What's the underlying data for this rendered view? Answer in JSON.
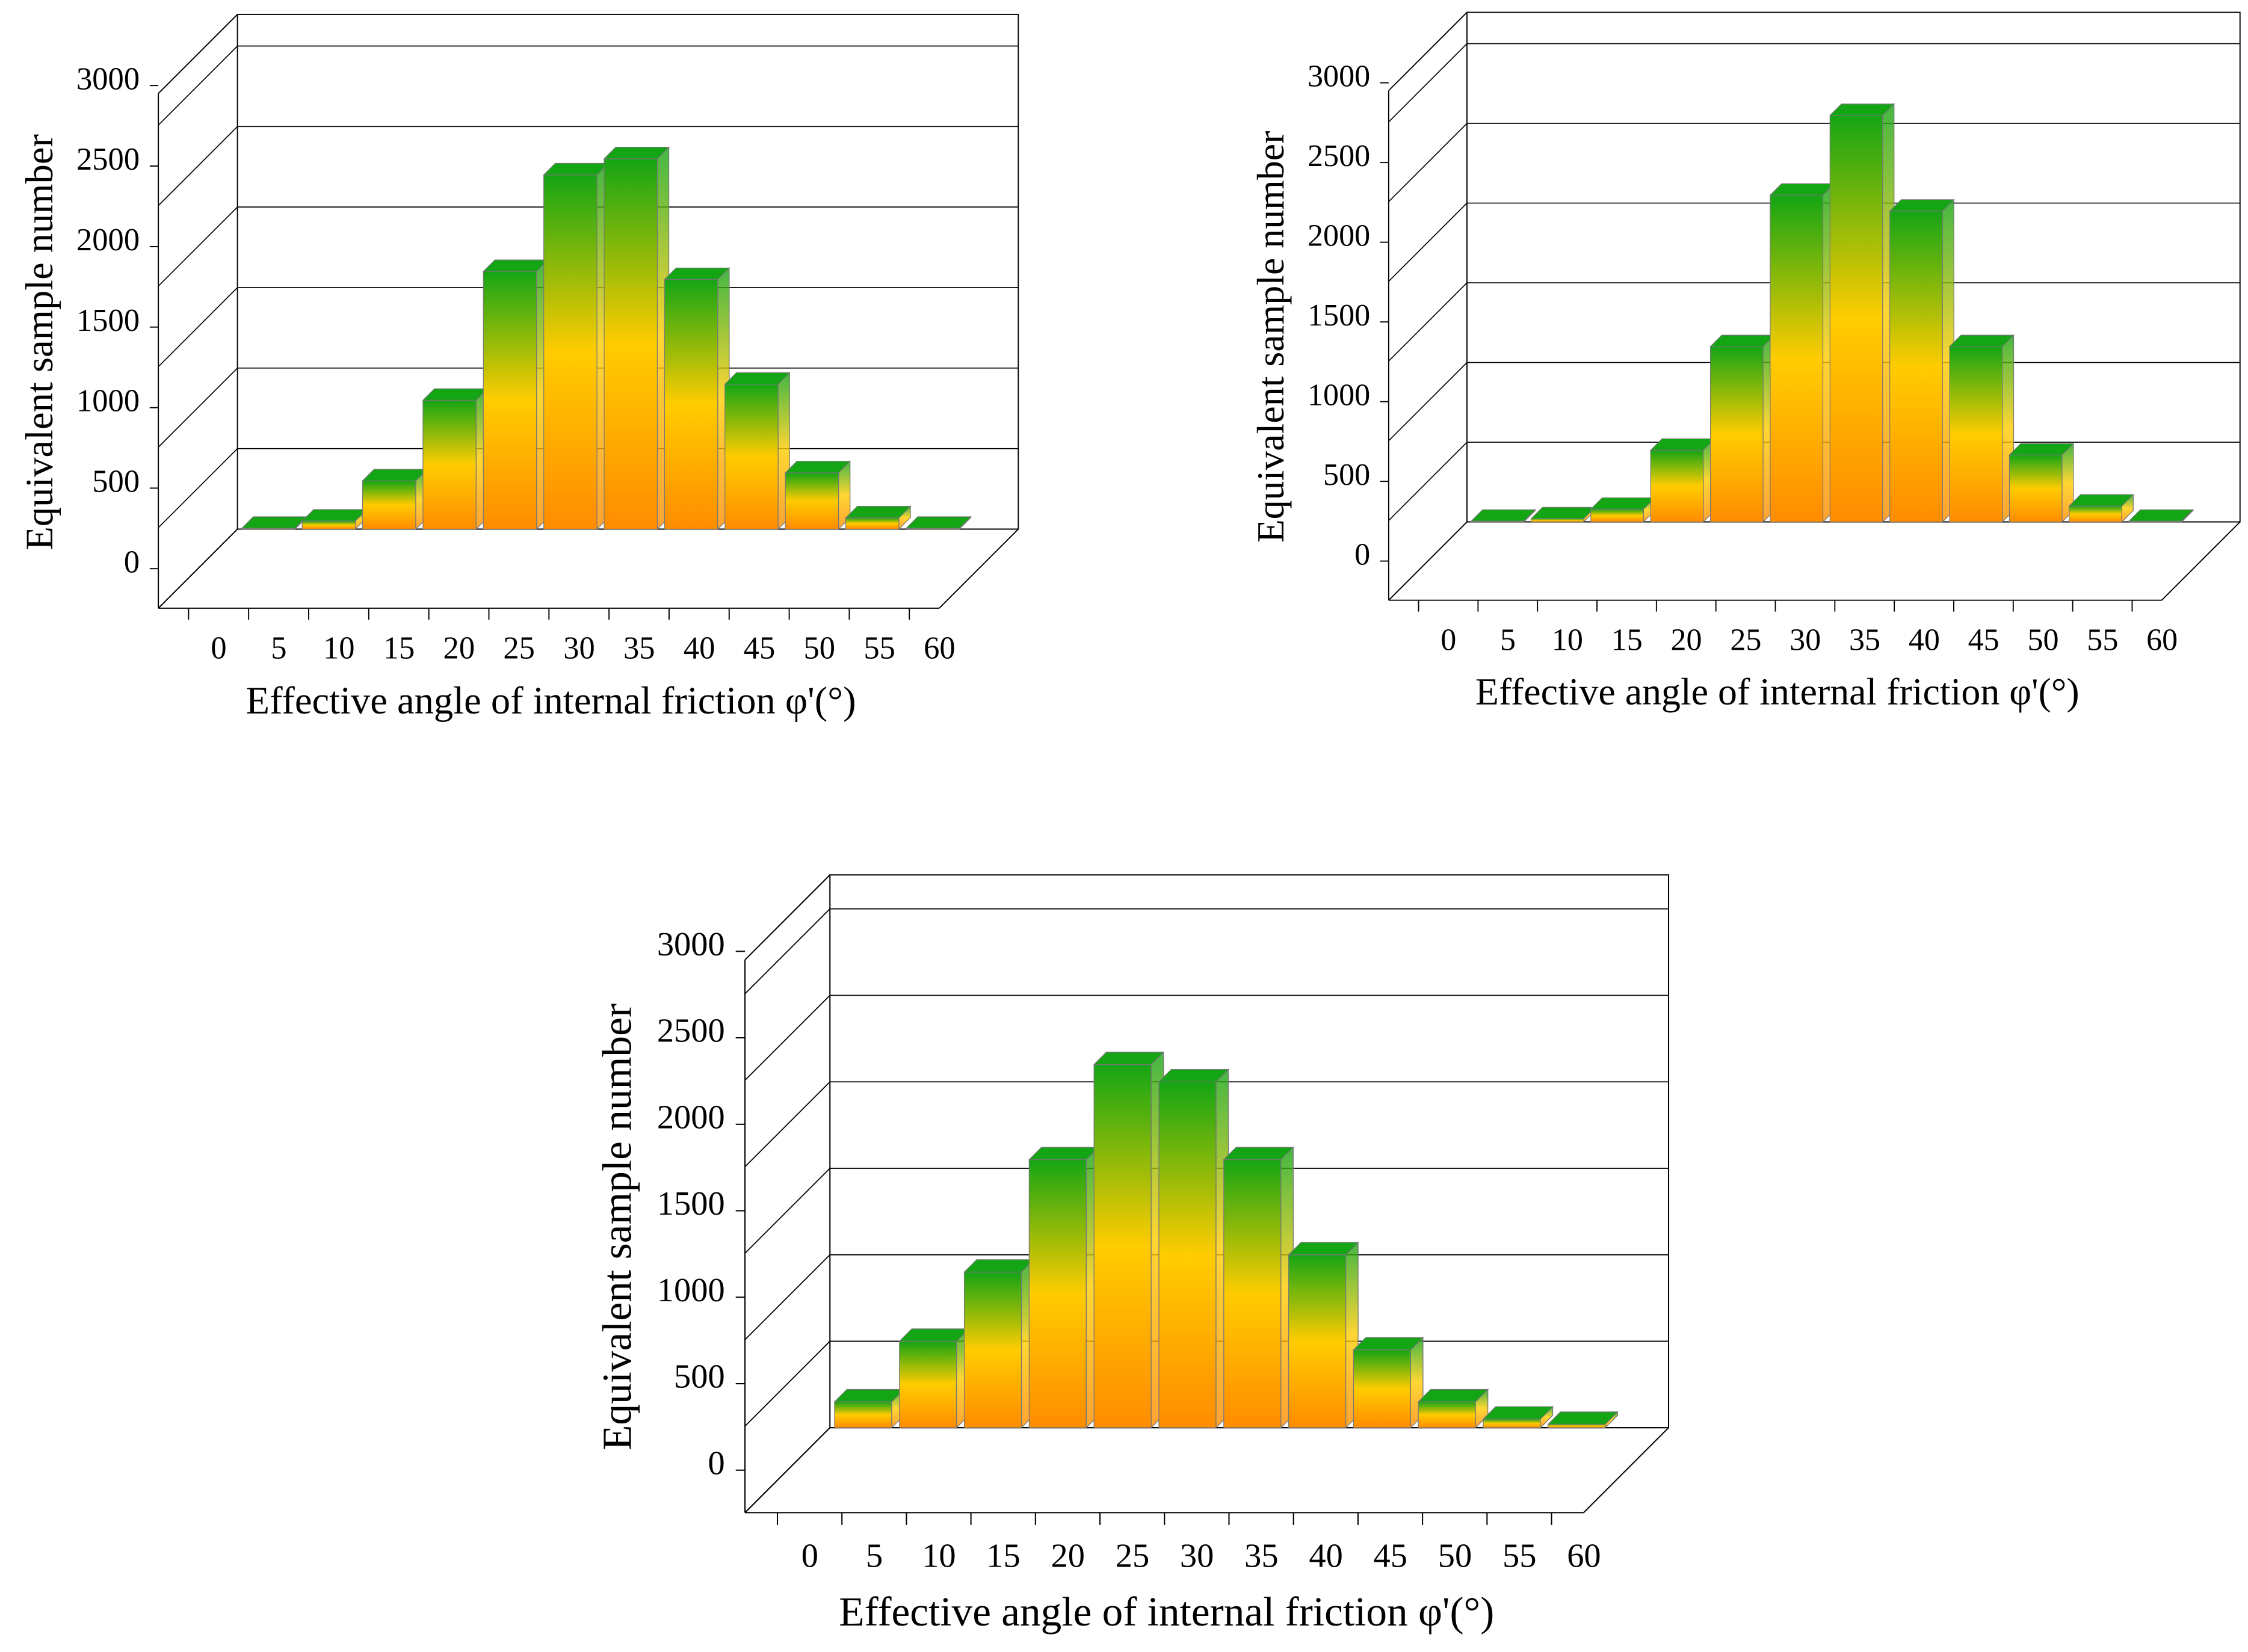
{
  "chart_data": [
    {
      "type": "histogram",
      "x_label": "Effective angle of internal friction φ'(°)",
      "y_label": "Equivalent sample number",
      "bins": [
        0,
        5,
        10,
        15,
        20,
        25,
        30,
        35,
        40,
        45,
        50,
        55,
        60
      ],
      "counts": [
        5,
        50,
        300,
        800,
        1600,
        2200,
        2300,
        1550,
        900,
        350,
        70,
        5
      ],
      "xlim": [
        0,
        60
      ],
      "xticks": [
        0,
        5,
        10,
        15,
        20,
        25,
        30,
        35,
        40,
        45,
        50,
        55,
        60
      ],
      "ylim": [
        0,
        3000
      ],
      "yticks": [
        0,
        500,
        1000,
        1500,
        2000,
        2500,
        3000
      ],
      "grid": true,
      "colors": [
        "#ff8c00",
        "#ffcc00",
        "#14a514"
      ]
    },
    {
      "type": "histogram",
      "x_label": "Effective angle of internal friction φ'(°)",
      "y_label": "Equivalent sample number",
      "bins": [
        0,
        5,
        10,
        15,
        20,
        25,
        30,
        35,
        40,
        45,
        50,
        55,
        60
      ],
      "counts": [
        5,
        20,
        80,
        450,
        1100,
        2050,
        2550,
        1950,
        1100,
        420,
        100,
        5
      ],
      "xlim": [
        0,
        60
      ],
      "xticks": [
        0,
        5,
        10,
        15,
        20,
        25,
        30,
        35,
        40,
        45,
        50,
        55,
        60
      ],
      "ylim": [
        0,
        3000
      ],
      "yticks": [
        0,
        500,
        1000,
        1500,
        2000,
        2500,
        3000
      ],
      "grid": true,
      "colors": [
        "#ff8c00",
        "#ffcc00",
        "#14a514"
      ]
    },
    {
      "type": "histogram",
      "x_label": "Effective angle of internal friction φ'(°)",
      "y_label": "Equivalent sample number",
      "bins": [
        0,
        5,
        10,
        15,
        20,
        25,
        30,
        35,
        40,
        45,
        50,
        55,
        60
      ],
      "counts": [
        150,
        500,
        900,
        1550,
        2100,
        2000,
        1550,
        1000,
        450,
        150,
        50,
        20
      ],
      "xlim": [
        0,
        60
      ],
      "xticks": [
        0,
        5,
        10,
        15,
        20,
        25,
        30,
        35,
        40,
        45,
        50,
        55,
        60
      ],
      "ylim": [
        0,
        3000
      ],
      "yticks": [
        0,
        500,
        1000,
        1500,
        2000,
        2500,
        3000
      ],
      "grid": true,
      "colors": [
        "#ff8c00",
        "#ffcc00",
        "#14a514"
      ]
    }
  ]
}
